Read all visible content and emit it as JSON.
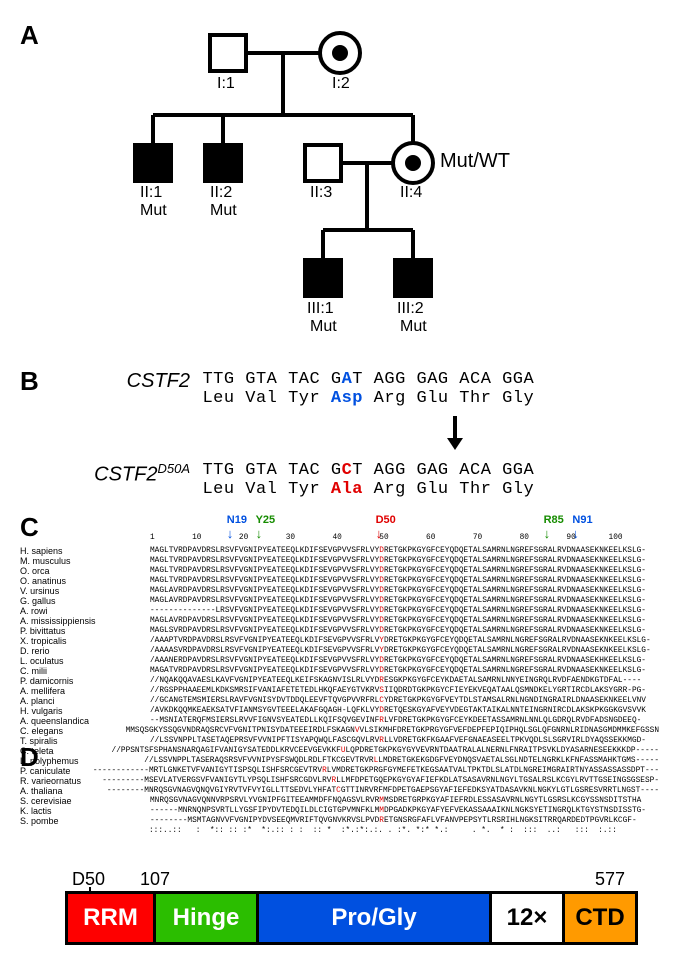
{
  "panels": {
    "A": "A",
    "B": "B",
    "C": "C",
    "D": "D"
  },
  "pedigree": {
    "gen1": {
      "male": "I:1",
      "female": "I:2"
    },
    "gen2": {
      "c1": {
        "id": "II:1",
        "geno": "Mut"
      },
      "c2": {
        "id": "II:2",
        "geno": "Mut"
      },
      "c3": {
        "id": "II:3"
      },
      "c4": {
        "id": "II:4",
        "geno": "Mut/WT"
      }
    },
    "gen3": {
      "c1": {
        "id": "III:1",
        "geno": "Mut"
      },
      "c2": {
        "id": "III:2",
        "geno": "Mut"
      }
    }
  },
  "panelB": {
    "wt_label": "CSTF2",
    "wt_dna_pre": "TTG GTA TAC G",
    "wt_dna_mid": "A",
    "wt_dna_post": "T AGG GAG ACA GGA",
    "wt_aa_pre": "Leu Val Tyr ",
    "wt_aa_mid": "Asp",
    "wt_aa_post": " Arg Glu Thr Gly",
    "mut_label_main": "CSTF2",
    "mut_label_sup": "D50A",
    "mut_dna_pre": "TTG GTA TAC G",
    "mut_dna_mid": "C",
    "mut_dna_post": "T AGG GAG ACA GGA",
    "mut_aa_pre": "Leu Val Tyr ",
    "mut_aa_mid": "Ala",
    "mut_aa_post": " Arg Glu Thr Gly"
  },
  "panelC": {
    "markers": [
      {
        "label": "N19",
        "pos_pct": 16,
        "color": "blue"
      },
      {
        "label": "Y25",
        "pos_pct": 22,
        "color": "green"
      },
      {
        "label": "D50",
        "pos_pct": 47,
        "color": "red"
      },
      {
        "label": "R85",
        "pos_pct": 82,
        "color": "green"
      },
      {
        "label": "N91",
        "pos_pct": 88,
        "color": "blue"
      }
    ],
    "ruler": "1        10        20        30        40        50        60        70        80        90       100",
    "species": [
      "H. sapiens",
      "M. musculus",
      "O. orca",
      "O. anatinus",
      "V. ursinus",
      "G. gallus",
      "A. rowi",
      "A. mississippiensis",
      "P. bivittatus",
      "X. tropicalis",
      "D. rerio",
      "L. oculatus",
      "C. milii",
      "P. damicornis",
      "A. mellifera",
      "A. planci",
      "H. vulgaris",
      "A. queenslandica",
      "C. elegans",
      "T. spiralis",
      "C. teleta",
      "L. polyphemus",
      "P. caniculate",
      "R. varieornatus",
      "A. thaliana",
      "S. cerevisiae",
      "K. lactis",
      "S. pombe"
    ],
    "seqs": [
      "MAGLTVRDPAVDRSLRSVFVGNIPYEATEEQLKDIFSEVGPVVSFRLVYDRETGKPKGYGFCEYQDQETALSAMRNLNGREFSGRALRVDNAASEKNKEELKSLG-",
      "MAGLTVRDPAVDRSLRSVFVGNIPYEATEEQLKDIFSEVGPVVSFRLVYDRETGKPKGYGFCEYQDQETALSAMRNLNGREFSGRALRVDNAASEKNKEELKSLG-",
      "MAGLTVRDPAVDRSLRSVFVGNIPYEATEEQLKDIFSEVGPVVSFRLVYDRETGKPKGYGFCEYQDQETALSAMRNLNGREFSGRALRVDNAASEKNKEELKSLG-",
      "MAGLTVRDPAVDRSLRSVFVGNIPYEATEEQLKDIFSEVGPVVSFRLVYDRETGKPKGYGFCEYQDQETALSAMRNLNGREFSGRALRVDNAASEKNKEELKSLG-",
      "MAGLAVRDPAVDRSLRSVFVGNIPYEATEEQLKDIFSEVGPVVSFRLVYDRETGKPKGYGFCEYQDQETALSAMRNLNGREFSGRALRVDNAASEKNKEELKSLG-",
      "MAGLAVRDPAVDRSLRSVFVGNIPYEATEEQLKDIFSEVGPVVSFRLVYDRETGKPKGYGFCEYQDQETALSAMRNLNGREFSGRALRVDNAASEKNKEELKSLG-",
      "--------------LRSVFVGNIPYEATEEQLKDIFSEVGPVVSFRLVYDRETGKPKGYGFCEYQDQETALSAMRNLNGREFSGRALRVDNAASEKNKEELKSLG-",
      "MAGLAVRDPAVDRSLRSVFVGNIPYEATEEQLKDIFSEVGPVVSFRLVYDRETGKPKGYGFCEYQDQETALSAMRNLNGREFSGRALRVDNAASEKNKEELKSLG-",
      "MAGLSVRDPAVDRSLRSVFVGNIPYEATEEQLKDIFSEVGPVVSFRLVYDRETGKPKGYGFCEYQDQETALSAMRNLNGREFSGRALRVDNAASEKNKEELKSLG-",
      "/AAAPTVRDPAVDRSLRSVFVGNIPYEATEEQLKDIFSEVGPVVSFRLVYDRETGKPKGYGFCEYQDQETALSAMRNLNGREFSGRALRVDNAASEKNKEELKSLG-",
      "/AAAASVRDPAVDRSLRSVFVGNIPYEATEEQLKDIFSEVGPVVSFRLVYDRETGKPKGYGFCEYQDQETALSAMRNLNGREFSGRALRVDNAASEKNKEELKSLG-",
      "/AAANERDPAVDRSLRSVFVGNIPYEATEEQLKDIFSEVGPVVSFRLVYDRETGKPKGYGFCEYQDQETALSAMRNLNGREFSGRALRVDNAASEKHKEELKSLG-",
      "MAGATVRDPAVDRSLRSVFVGNIPYEATEEQLKDIFSEVGPVVSFRLVYDRETGKPKGYGFCEYQDQETALSAMRNLNGREFSGRALRVDNAASEKNKEELKSLG-",
      "//NQAKQQAVAESLKAVFVGNIPYEATEEQLKEIFSKAGNVISLRLVYDRESGKPKGYGFCEYKDAETALSAMRNLNNYEINGRQLRVDFAENDKGTDFAL----",
      "//RGSPPHAAEEMLKDKSMRSIFVANIAFETETEDLHKQFAEYGTVKRVSIIQDRDTGKPKGYCFIEYEKVEQATAALQSMNDKELYGRTIRCDLAKSYGRR-PG-",
      "//GCANGTEMSMIERSLRAVFVGNISYDVTDDQLEEVFTQVGPVVRFRLCYDRETGKPKGYGFVEYTDLSTAMSALRNLNGNDINGRAIRLDNAASEKNKEELVNV",
      "/AVKDKQQMKEAEKSATVFIANMSYGVTEEELAKAFGQAGH-LQFKLVYDRETQESKGYAFVEYVDEGTAKTAIKALNNTEINGRNIRCDLAKSKPKGGKGVSVVK",
      "--MSNIATERQFMSIERSLRVVFIGNVSYEATEDLLKQIFSQVGEVINFRLVFDRETGKPKGYGFCEYKDEETASSAMRNLNNLQLGDRQLRVDFADSNGDEEQ-",
      "MMSQSGKYSSQGVNDRAQSRCVFVGNITPNISYDATEEEIRDLFSKAGNVVLSIKMHFDRETGKPRGYGFVEFDEPFEPIQIPHQLSGLQFGNRNLRIDNASGMDMMKEFGSSN",
      "//LSSVNPPLTASETAQEPRSVFVVNIPFTISYAPQWQLFASCGQVLRVRLLVDRETGKFKGAAFVEFGNAEASEELTPKVQDLSLSGRVIRLDYAQSSEKKMGD-",
      "//PPSNTSFSPHANSNARQAGIFVANIGYSATEDDLKRVCEEVGEVKKFULQPDRETGKPKGYGYVEVRNTDAATRALALNERNLFNRAITPSVKLDYASARNESEEKKKDP-----",
      "//LSSVNPPLTASERAQSRSVFVVNIPYSFSWQDLRDLFTKCGEVTRVRLLMDRETGKEKGDGFVEYDNQSVAETALSGLNDTELNGRKLKFNFASSMAHKTGMS-----",
      "------------MRTLGNKETVFVANIGYTISPSQLISHFSRCGEVTRVRLVMDRETGKPRGFGYMEFETKEGSAATVALTPKTDLSLATDLNGREIMGRAIRTNYASSASSASSDPT---",
      "---------MSEVLATVERGSVFVANIGYTLYPSQLISHFSRCGDVLRVRLLMFDPETGQEPKGYGYAFIEFKDLATSASAVRNLNGYLTGSALRSLKCGYLRVTTGSEINGSGSESP-",
      "--------MNRQSGVNAGVQNQVGIYRVTVFVYIGLLTTSEDVLYHFATCGTTINRVRFMFDPETGAEPSGYAFIEFEDKSYATDASAVKNLNGKYLGTLGSRESVRRTLNGST----",
      "MNRQSGVNAGVQNNVRPSRVLYVGNIPFGITEEAMMDFFNQAGSVLRVRMMSDRETGRPKGYAFIEFRDLESSASAVRNLNGYTLGSRSLKCGYSSNSDITSTHA",
      "------MNRNQNPSVRTLLYGSFIPYDVTEDQILDLCIGTGPVMNFKLMMDPGADKPKGYAFYEFVEKASSAAAIKNLNGKSYETINGRQLKTGYSTNSDISSTG-",
      "--------MSMTAGNVVFVGNIPYDVSEEQMVRIFTQVGNVKRVSLPVDRETGNSRGFAFLVFANVPEPSYTLRSRIHLNGKSITRRQARDEDTPGVRLKCGF-"
    ],
    "cons": "                :::..::   :  *:: :: :*  *:.:: : :  :: *  :*.:*:.:. . :*. *:* *.:     . *.  * :  :::  ..:   :::  :.::         "
  },
  "panelD": {
    "d50": "D50",
    "p107": "107",
    "p577": "577",
    "rrm": "RRM",
    "hinge": "Hinge",
    "pro": "Pro/Gly",
    "twelve": "12×",
    "ctd": "CTD"
  }
}
